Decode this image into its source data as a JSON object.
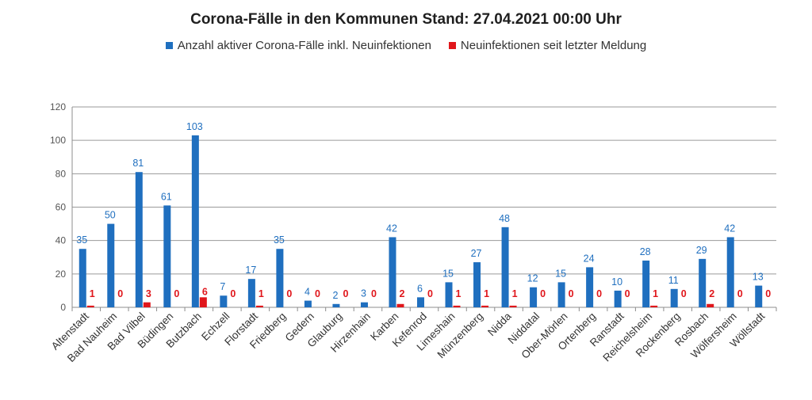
{
  "chart_data": {
    "type": "bar",
    "title": "Corona-Fälle in den Kommunen Stand: 27.04.2021 00:00 Uhr",
    "xlabel": "",
    "ylabel": "",
    "ylim": [
      0,
      120
    ],
    "yticks": [
      0,
      20,
      40,
      60,
      80,
      100,
      120
    ],
    "grid": true,
    "legend_position": "top",
    "categories": [
      "Altenstadt",
      "Bad Nauheim",
      "Bad Vilbel",
      "Büdingen",
      "Butzbach",
      "Echzell",
      "Florstadt",
      "Friedberg",
      "Gedern",
      "Glauburg",
      "Hirzenhain",
      "Karben",
      "Kefenrod",
      "Limeshain",
      "Münzenberg",
      "Nidda",
      "Niddatal",
      "Ober-Mörlen",
      "Ortenberg",
      "Ranstadt",
      "Reichelsheim",
      "Rockenberg",
      "Rosbach",
      "Wölfersheim",
      "Wöllstadt"
    ],
    "series": [
      {
        "name": "Anzahl aktiver Corona-Fälle inkl. Neuinfektionen",
        "color": "#1f6fbf",
        "values": [
          35,
          50,
          81,
          61,
          103,
          7,
          17,
          35,
          4,
          2,
          3,
          42,
          6,
          15,
          27,
          48,
          12,
          15,
          24,
          10,
          28,
          11,
          29,
          42,
          13
        ]
      },
      {
        "name": "Neuinfektionen seit letzter Meldung",
        "color": "#e0161b",
        "values": [
          1,
          0,
          3,
          0,
          6,
          0,
          1,
          0,
          0,
          0,
          0,
          2,
          0,
          1,
          1,
          1,
          0,
          0,
          0,
          0,
          1,
          0,
          2,
          0,
          0
        ]
      }
    ]
  }
}
